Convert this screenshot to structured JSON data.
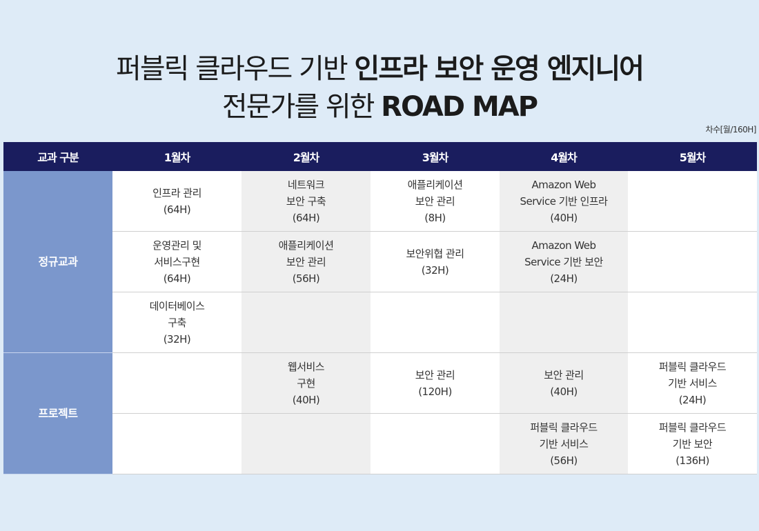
{
  "title": {
    "line1_normal": "퍼블릭 클라우드 기반 ",
    "line1_bold": "인프라 보안 운영 엔지니어",
    "line2_normal": "전문가를 위한 ",
    "line2_bold": "ROAD MAP"
  },
  "unit_note": "차수[월/160H]",
  "colors": {
    "header_bg": "#1a1d5e",
    "category_bg": "#7b97cc",
    "page_bg": "#deebf7",
    "shaded_cell": "#efefef"
  },
  "table": {
    "headers": [
      "교과 구분",
      "1월차",
      "2월차",
      "3월차",
      "4월차",
      "5월차"
    ],
    "groups": [
      {
        "category": "정규교과",
        "rows": [
          [
            [
              "인프라 관리",
              "(64H)"
            ],
            [
              "네트워크",
              "보안 구축",
              "(64H)"
            ],
            [
              "애플리케이션",
              "보안 관리",
              "(8H)"
            ],
            [
              "Amazon Web",
              "Service 기반 인프라",
              "(40H)"
            ],
            []
          ],
          [
            [
              "운영관리 및",
              "서비스구현",
              "(64H)"
            ],
            [
              "애플리케이션",
              "보안 관리",
              "(56H)"
            ],
            [
              "보안위협 관리",
              "(32H)"
            ],
            [
              "Amazon Web",
              "Service 기반 보안",
              "(24H)"
            ],
            []
          ],
          [
            [
              "데이터베이스",
              "구축",
              "(32H)"
            ],
            [],
            [],
            [],
            []
          ]
        ]
      },
      {
        "category": "프로젝트",
        "rows": [
          [
            [],
            [
              "웹서비스",
              "구현",
              "(40H)"
            ],
            [
              "보안 관리",
              "(120H)"
            ],
            [
              "보안 관리",
              "(40H)"
            ],
            [
              "퍼블릭 클라우드",
              "기반 서비스",
              "(24H)"
            ]
          ],
          [
            [],
            [],
            [],
            [
              "퍼블릭 클라우드",
              "기반 서비스",
              "(56H)"
            ],
            [
              "퍼블릭 클라우드",
              "기반 보안",
              "(136H)"
            ]
          ]
        ]
      }
    ]
  }
}
